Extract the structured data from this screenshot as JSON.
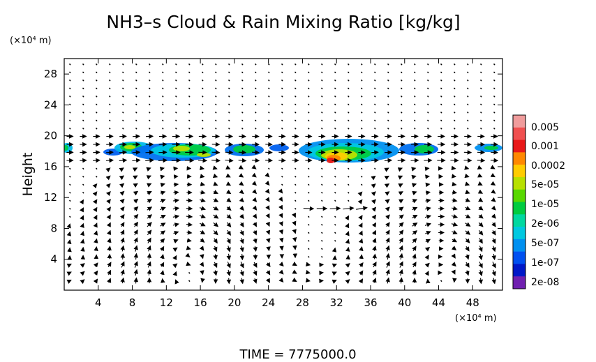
{
  "chart_data": {
    "type": "heatmap",
    "title": "NH3–s Cloud & Rain Mixing Ratio [kg/kg]",
    "ylabel": "Height",
    "y_unit": "(×10⁴ m)",
    "x_unit": "(×10⁴ m)",
    "xlim": [
      0,
      51.5
    ],
    "ylim": [
      0,
      30
    ],
    "x_ticks": [
      4,
      8,
      12,
      16,
      20,
      24,
      28,
      32,
      36,
      40,
      44,
      48
    ],
    "x_tick_labels": [
      "4",
      "8",
      "12",
      "16",
      "20",
      "24",
      "28",
      "32",
      "36",
      "40",
      "44",
      "48"
    ],
    "y_ticks": [
      4,
      8,
      12,
      16,
      20,
      24,
      28
    ],
    "y_tick_labels": [
      "4",
      "8",
      "12",
      "16",
      "20",
      "24",
      "28"
    ],
    "colorbar": {
      "labels": [
        "0.005",
        "0.001",
        "0.0002",
        "5e-05",
        "1e-05",
        "2e-06",
        "5e-07",
        "1e-07",
        "2e-08"
      ],
      "colors": [
        "#f09c9c",
        "#f05050",
        "#e81818",
        "#ff8800",
        "#ffcc00",
        "#b8e000",
        "#58d800",
        "#00cc40",
        "#00d8a0",
        "#00c8e0",
        "#0090f0",
        "#0050f0",
        "#0018c8",
        "#7020b0"
      ]
    },
    "footer_text": "TIME  =  7775000.0"
  },
  "colors": {
    "ink": "#000000",
    "background": "#ffffff"
  }
}
